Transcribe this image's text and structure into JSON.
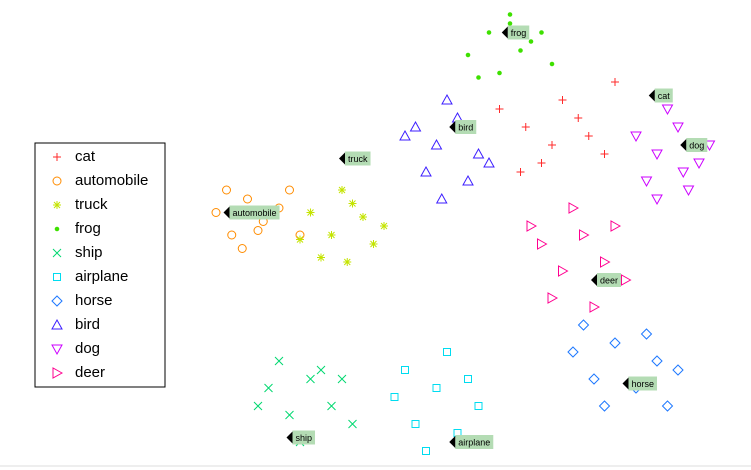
{
  "chart_data": {
    "type": "scatter",
    "xlim": [
      0,
      100
    ],
    "ylim": [
      0,
      100
    ],
    "legend": "left",
    "series": [
      {
        "name": "cat",
        "shape": "plus",
        "color": "#ff2a2a",
        "x": [
          58,
          63,
          68,
          73,
          78,
          62,
          70,
          75,
          66,
          80
        ],
        "y": [
          78,
          74,
          70,
          76,
          68,
          64,
          80,
          72,
          66,
          84
        ]
      },
      {
        "name": "automobile",
        "shape": "circle",
        "color": "#ff8c00",
        "x": [
          4,
          7,
          10,
          13,
          16,
          6,
          9,
          12,
          18,
          20
        ],
        "y": [
          55,
          50,
          58,
          53,
          56,
          60,
          47,
          51,
          60,
          50
        ]
      },
      {
        "name": "truck",
        "shape": "asterisk",
        "color": "#c4e400",
        "x": [
          22,
          26,
          30,
          34,
          24,
          28,
          32,
          20,
          36,
          29
        ],
        "y": [
          55,
          50,
          57,
          48,
          45,
          60,
          54,
          49,
          52,
          44
        ]
      },
      {
        "name": "frog",
        "shape": "dot",
        "color": "#3ee000",
        "x": [
          52,
          56,
          60,
          64,
          68,
          58,
          62,
          54,
          66,
          60
        ],
        "y": [
          90,
          95,
          97,
          93,
          88,
          86,
          91,
          85,
          95,
          99
        ]
      },
      {
        "name": "ship",
        "shape": "cross",
        "color": "#00d870",
        "x": [
          14,
          18,
          22,
          26,
          30,
          16,
          24,
          20,
          28,
          12
        ],
        "y": [
          16,
          10,
          18,
          12,
          8,
          22,
          20,
          4,
          18,
          12
        ]
      },
      {
        "name": "airplane",
        "shape": "square",
        "color": "#00dcf0",
        "x": [
          38,
          42,
          46,
          50,
          54,
          40,
          48,
          44,
          52,
          56
        ],
        "y": [
          14,
          8,
          16,
          6,
          12,
          20,
          24,
          2,
          18,
          4
        ]
      },
      {
        "name": "horse",
        "shape": "diamond",
        "color": "#1e78ff",
        "x": [
          72,
          76,
          80,
          84,
          88,
          92,
          78,
          86,
          74,
          90
        ],
        "y": [
          24,
          18,
          26,
          16,
          22,
          20,
          12,
          28,
          30,
          12
        ]
      },
      {
        "name": "bird",
        "shape": "triangle-up",
        "color": "#3c1eff",
        "x": [
          42,
          46,
          50,
          54,
          44,
          48,
          52,
          40,
          56,
          47
        ],
        "y": [
          74,
          70,
          76,
          68,
          64,
          80,
          62,
          72,
          66,
          58
        ]
      },
      {
        "name": "dog",
        "shape": "triangle-down",
        "color": "#cc00ff",
        "x": [
          84,
          88,
          92,
          96,
          86,
          90,
          94,
          98,
          88,
          93
        ],
        "y": [
          72,
          68,
          74,
          66,
          62,
          78,
          60,
          70,
          58,
          64
        ]
      },
      {
        "name": "deer",
        "shape": "triangle-right",
        "color": "#ff0090",
        "x": [
          66,
          70,
          74,
          78,
          82,
          68,
          72,
          80,
          76,
          64
        ],
        "y": [
          48,
          42,
          50,
          44,
          40,
          36,
          56,
          52,
          34,
          52
        ]
      }
    ],
    "annotations": [
      {
        "text": "frog",
        "x": 59,
        "y": 95
      },
      {
        "text": "cat",
        "x": 87,
        "y": 81
      },
      {
        "text": "bird",
        "x": 49,
        "y": 74
      },
      {
        "text": "truck",
        "x": 28,
        "y": 67
      },
      {
        "text": "dog",
        "x": 93,
        "y": 70
      },
      {
        "text": "automobile",
        "x": 6,
        "y": 55
      },
      {
        "text": "deer",
        "x": 76,
        "y": 40
      },
      {
        "text": "horse",
        "x": 82,
        "y": 17
      },
      {
        "text": "ship",
        "x": 18,
        "y": 5
      },
      {
        "text": "airplane",
        "x": 49,
        "y": 4
      }
    ]
  }
}
